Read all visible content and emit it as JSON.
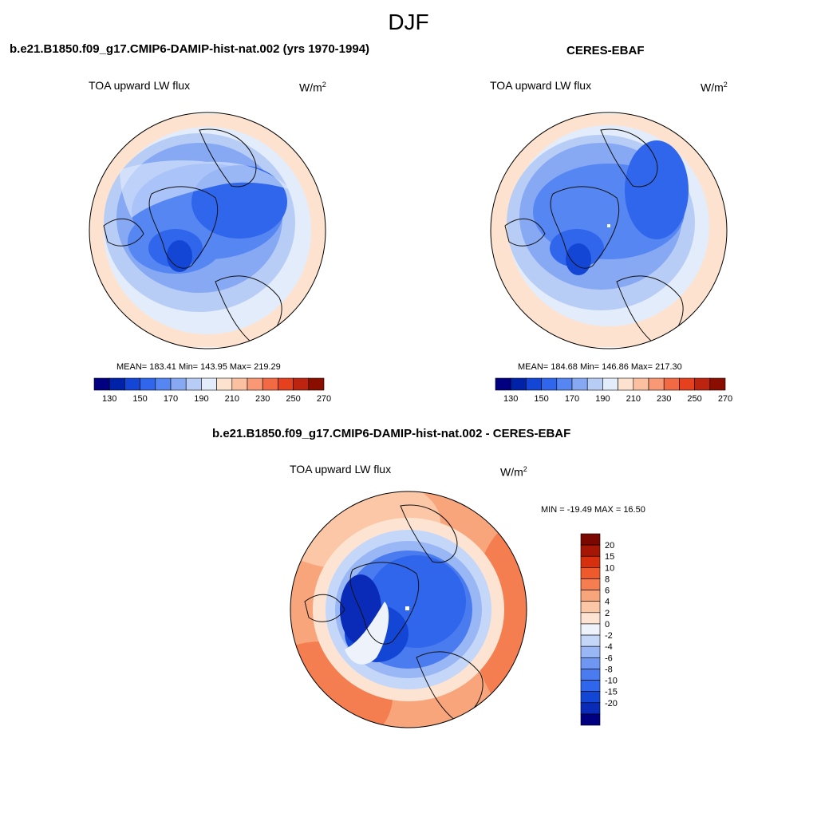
{
  "page": {
    "title": "DJF"
  },
  "palettes": {
    "abs": [
      "#000080",
      "#0022a8",
      "#1446d6",
      "#2f66ec",
      "#5686f2",
      "#87a9f4",
      "#b8cdf6",
      "#e2ecfb",
      "#fde3cf",
      "#fbc0a0",
      "#f89875",
      "#f26a43",
      "#e5411f",
      "#bc2410",
      "#8a0e00"
    ],
    "diff": [
      "#000080",
      "#0a2bb8",
      "#1446d6",
      "#2f66ec",
      "#4a7cf0",
      "#6f97f2",
      "#99b6f5",
      "#c5d7f8",
      "#eef2fb",
      "#fde4d2",
      "#fbc7a6",
      "#f9a57b",
      "#f57e51",
      "#ef5a2d",
      "#d6300f",
      "#a51605",
      "#7a0800"
    ]
  },
  "panels": [
    {
      "title": "b.e21.B1850.f09_g17.CMIP6-DAMIP-hist-nat.002 (yrs 1970-1994)",
      "variable": "TOA upward LW flux",
      "units_base": "W/m",
      "units_exp": "2",
      "stats": "MEAN= 183.41  Min= 143.95  Max= 219.29",
      "colorbar_ticks": [
        "130",
        "150",
        "170",
        "190",
        "210",
        "230",
        "250",
        "270"
      ]
    },
    {
      "title": "CERES-EBAF",
      "variable": "TOA upward LW flux",
      "units_base": "W/m",
      "units_exp": "2",
      "stats": "MEAN= 184.68  Min= 146.86  Max= 217.30",
      "colorbar_ticks": [
        "130",
        "150",
        "170",
        "190",
        "210",
        "230",
        "250",
        "270"
      ]
    },
    {
      "title": "b.e21.B1850.f09_g17.CMIP6-DAMIP-hist-nat.002 - CERES-EBAF",
      "variable": "TOA upward LW flux",
      "units_base": "W/m",
      "units_exp": "2",
      "stats": "MIN = -19.49 MAX =  16.50",
      "colorbar_ticks": [
        "20",
        "15",
        "10",
        "8",
        "6",
        "4",
        "2",
        "0",
        "-2",
        "-4",
        "-6",
        "-8",
        "-10",
        "-15",
        "-20"
      ]
    }
  ]
}
